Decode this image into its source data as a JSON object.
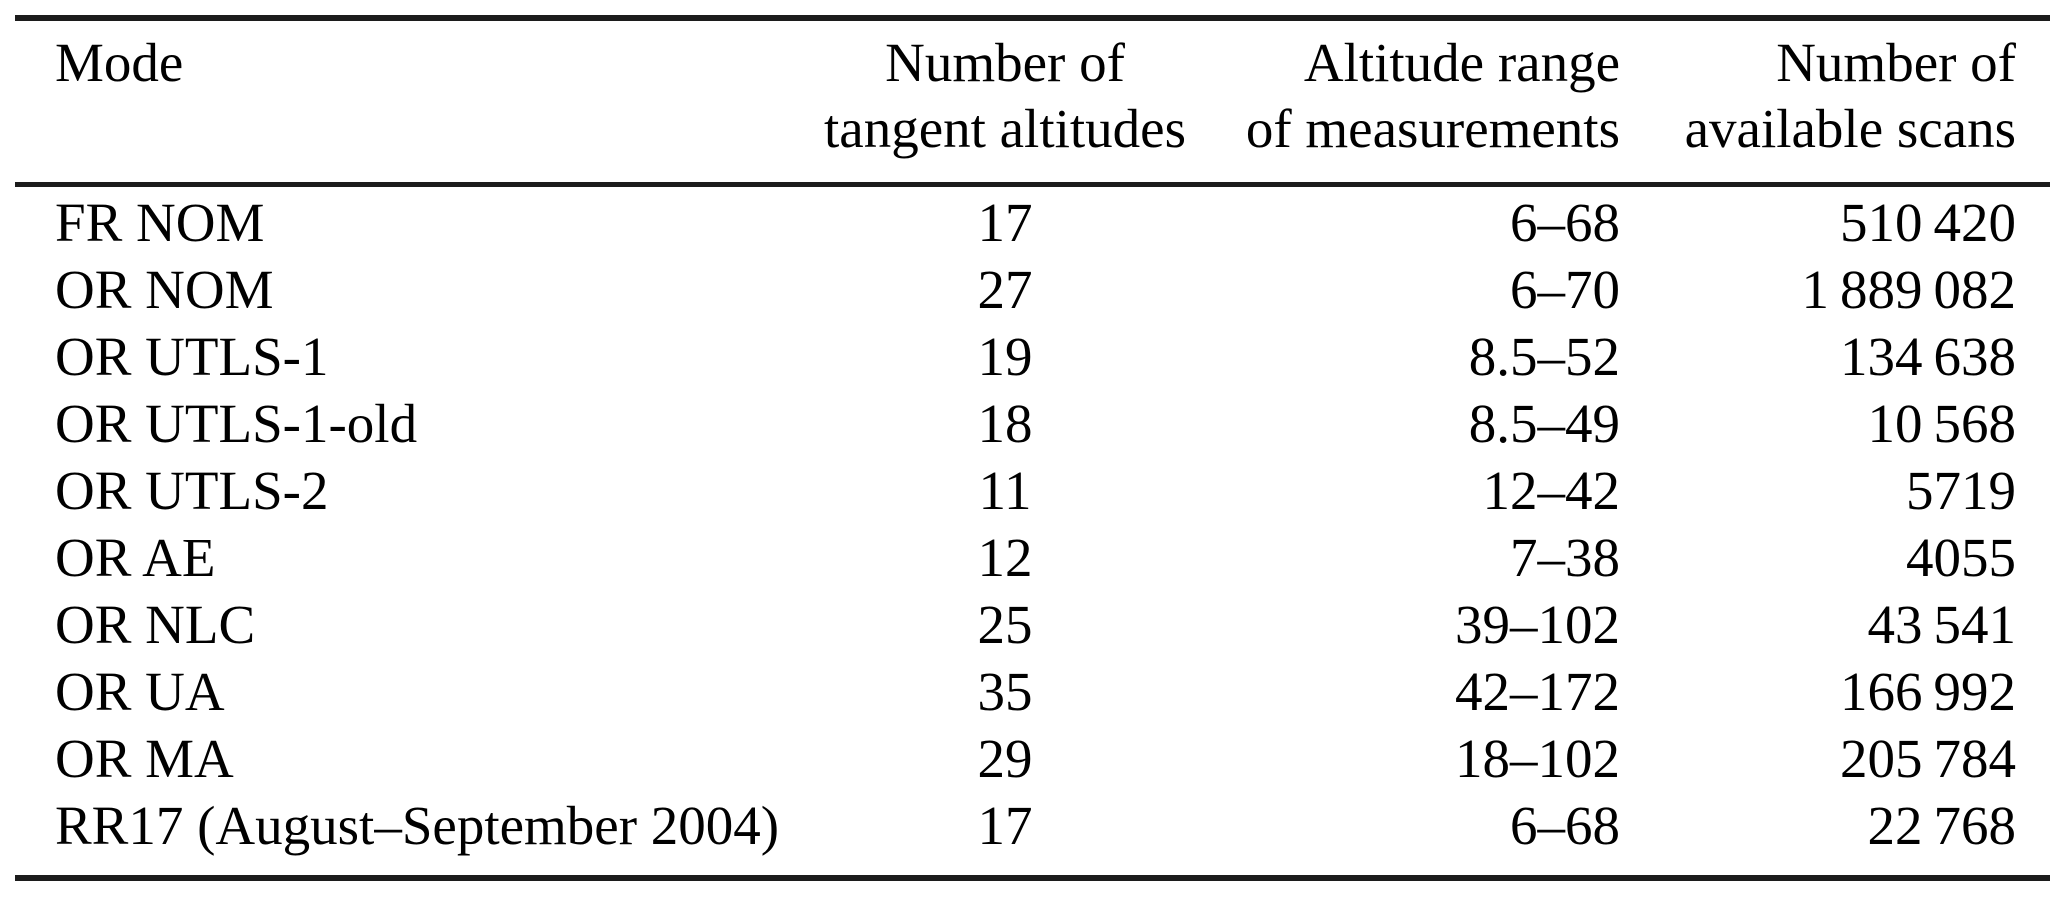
{
  "colors": {
    "background": "#ffffff",
    "text": "#000000",
    "rule": "#1c1c1c"
  },
  "table": {
    "columns": [
      {
        "line1": "Mode",
        "line2": ""
      },
      {
        "line1": "Number of",
        "line2": "tangent altitudes"
      },
      {
        "line1": "Altitude range",
        "line2": "of measurements"
      },
      {
        "line1": "Number of",
        "line2": "available scans"
      }
    ],
    "rows": [
      [
        "FR NOM",
        "17",
        "6–68",
        "510 420"
      ],
      [
        "OR NOM",
        "27",
        "6–70",
        "1 889 082"
      ],
      [
        "OR UTLS-1",
        "19",
        "8.5–52",
        "134 638"
      ],
      [
        "OR UTLS-1-old",
        "18",
        "8.5–49",
        "10 568"
      ],
      [
        "OR UTLS-2",
        "11",
        "12–42",
        "5719"
      ],
      [
        "OR AE",
        "12",
        "7–38",
        "4055"
      ],
      [
        "OR NLC",
        "25",
        "39–102",
        "43 541"
      ],
      [
        "OR UA",
        "35",
        "42–172",
        "166 992"
      ],
      [
        "OR MA",
        "29",
        "18–102",
        "205 784"
      ],
      [
        "RR17 (August–September 2004)",
        "17",
        "6–68",
        "22 768"
      ]
    ]
  },
  "chart_data": {
    "type": "table",
    "title": "",
    "columns": [
      "Mode",
      "Number of tangent altitudes",
      "Altitude range of measurements",
      "Number of available scans"
    ],
    "rows": [
      [
        "FR NOM",
        17,
        "6-68",
        510420
      ],
      [
        "OR NOM",
        27,
        "6-70",
        1889082
      ],
      [
        "OR UTLS-1",
        19,
        "8.5-52",
        134638
      ],
      [
        "OR UTLS-1-old",
        18,
        "8.5-49",
        10568
      ],
      [
        "OR UTLS-2",
        11,
        "12-42",
        5719
      ],
      [
        "OR AE",
        12,
        "7-38",
        4055
      ],
      [
        "OR NLC",
        25,
        "39-102",
        43541
      ],
      [
        "OR UA",
        35,
        "42-172",
        166992
      ],
      [
        "OR MA",
        29,
        "18-102",
        205784
      ],
      [
        "RR17 (August-September 2004)",
        17,
        "6-68",
        22768
      ]
    ]
  }
}
